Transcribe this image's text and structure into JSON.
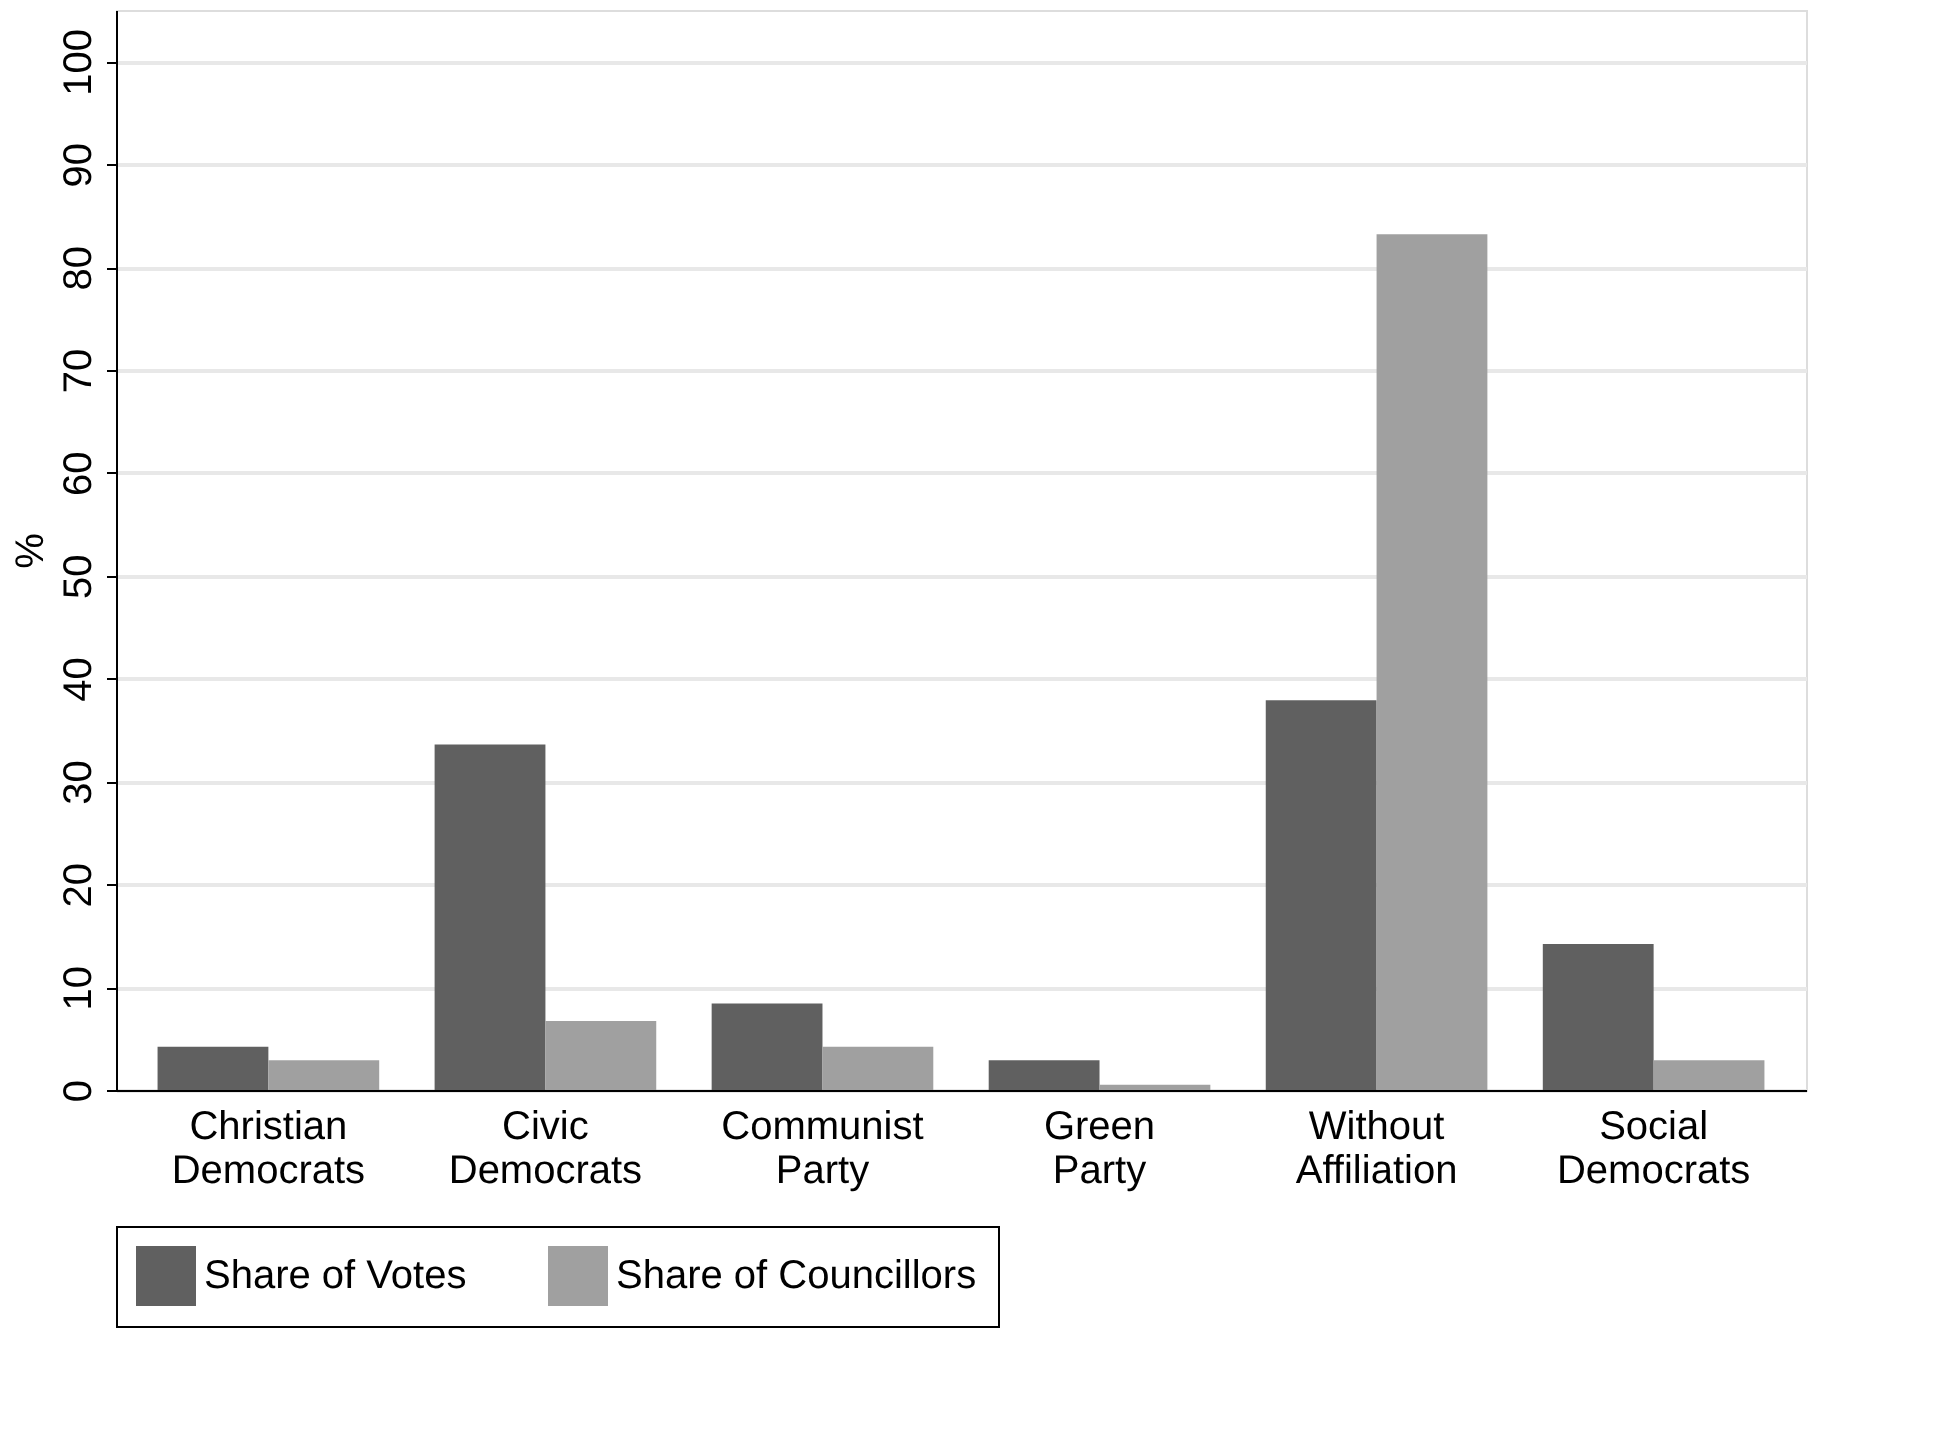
{
  "chart_data": {
    "type": "bar",
    "ylabel": "%",
    "categories": [
      "Christian Democrats",
      "Civic Democrats",
      "Communist Party",
      "Green Party",
      "Without Affiliation",
      "Social Democrats"
    ],
    "series": [
      {
        "name": "Share of Votes",
        "color": "#606060",
        "values": [
          4.2,
          33.6,
          8.4,
          2.9,
          37.9,
          14.2
        ]
      },
      {
        "name": "Share of Councillors",
        "color": "#a0a0a0",
        "values": [
          2.9,
          6.7,
          4.2,
          0.5,
          83.2,
          2.9
        ]
      }
    ],
    "ylim": [
      0,
      105
    ],
    "yticks": [
      0,
      10,
      20,
      30,
      40,
      50,
      60,
      70,
      80,
      90,
      100
    ],
    "grid": "y",
    "legend": "bottom"
  }
}
